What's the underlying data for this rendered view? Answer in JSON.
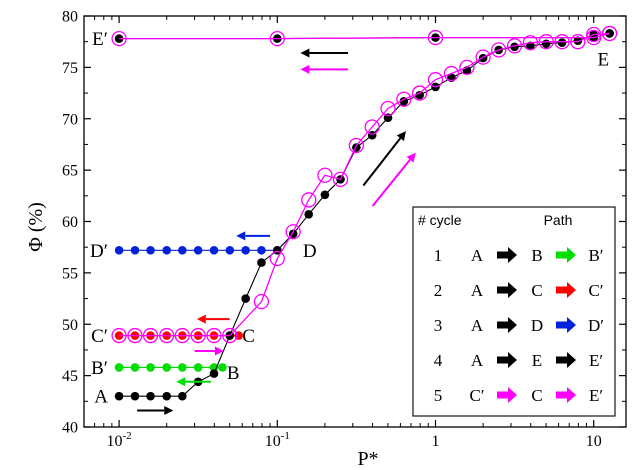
{
  "chart_data": {
    "type": "scatter",
    "xlabel": "P*",
    "ylabel": "Φ (%)",
    "xscale": "log",
    "xlim": [
      0.006,
      16
    ],
    "ylim": [
      40,
      80
    ],
    "x_ticks": [
      {
        "v": 0.01,
        "base": "10",
        "exp": "-2"
      },
      {
        "v": 0.1,
        "base": "10",
        "exp": "-1"
      },
      {
        "v": 1,
        "base": "1",
        "exp": ""
      },
      {
        "v": 10,
        "base": "10",
        "exp": ""
      }
    ],
    "y_ticks": [
      40,
      45,
      50,
      55,
      60,
      65,
      70,
      75,
      80
    ],
    "grid": false,
    "series": [
      {
        "name": "1",
        "color": "#00dd00",
        "marker": "filled-circle",
        "x": [
          0.01,
          0.0126,
          0.0158,
          0.02,
          0.0251,
          0.0316,
          0.0398,
          0.045
        ],
        "y": [
          45.8,
          45.8,
          45.8,
          45.8,
          45.8,
          45.8,
          45.8,
          45.8
        ]
      },
      {
        "name": "2",
        "color": "#ff0000",
        "marker": "filled-circle",
        "x": [
          0.01,
          0.0126,
          0.0158,
          0.02,
          0.0251,
          0.0316,
          0.0398,
          0.0501,
          0.057
        ],
        "y": [
          48.9,
          48.9,
          48.9,
          48.9,
          48.9,
          48.9,
          48.9,
          48.9,
          48.9
        ]
      },
      {
        "name": "3",
        "color": "#0022dd",
        "marker": "filled-circle",
        "x": [
          0.01,
          0.0126,
          0.0158,
          0.02,
          0.0251,
          0.0316,
          0.0398,
          0.0501,
          0.0631,
          0.0794,
          0.1
        ],
        "y": [
          57.2,
          57.2,
          57.2,
          57.2,
          57.2,
          57.2,
          57.2,
          57.2,
          57.2,
          57.2,
          57.2
        ]
      },
      {
        "name": "4",
        "color": "#000000",
        "marker": "filled-circle",
        "x": [
          0.01,
          0.0126,
          0.0158,
          0.02,
          0.0251,
          0.0316,
          0.0398,
          0.0501,
          0.0631,
          0.0794,
          0.1,
          0.126,
          0.158,
          0.2,
          0.251,
          0.316,
          0.398,
          0.501,
          0.631,
          0.794,
          1,
          1.26,
          1.58,
          2,
          2.51,
          3.16,
          3.98,
          5.01,
          6.31,
          7.94,
          10,
          12.6,
          12.6,
          10,
          1,
          0.1,
          0.01
        ],
        "y": [
          43.0,
          43.0,
          43.0,
          43.0,
          43.0,
          44.4,
          45.2,
          48.9,
          52.5,
          56.0,
          57.2,
          58.8,
          60.7,
          62.6,
          64.1,
          67.2,
          68.4,
          70.1,
          71.7,
          72.3,
          73.1,
          74.0,
          74.7,
          75.9,
          76.7,
          77.0,
          77.1,
          77.3,
          77.4,
          77.6,
          78.2,
          78.3,
          78.3,
          77.9,
          77.9,
          77.8,
          77.8
        ]
      },
      {
        "name": "5",
        "color": "#ff00ff",
        "marker": "open-circle",
        "x": [
          0.01,
          0.0126,
          0.0158,
          0.02,
          0.0251,
          0.0316,
          0.0398,
          0.0501,
          0.0794,
          0.1,
          0.126,
          0.158,
          0.2,
          0.251,
          0.316,
          0.398,
          0.501,
          0.631,
          0.794,
          1,
          1.26,
          1.58,
          2,
          2.51,
          3.16,
          3.98,
          5.01,
          6.31,
          7.94,
          10,
          12.6,
          12.6,
          10,
          1,
          0.1,
          0.01
        ],
        "y": [
          48.9,
          48.9,
          48.9,
          48.9,
          48.9,
          48.9,
          48.9,
          48.9,
          52.2,
          56.4,
          59.0,
          62.1,
          64.5,
          64.1,
          67.4,
          69.2,
          71.0,
          71.9,
          72.5,
          73.8,
          74.4,
          75.0,
          76.0,
          76.7,
          77.1,
          77.4,
          77.5,
          77.5,
          77.5,
          78.2,
          78.3,
          78.3,
          77.9,
          77.9,
          77.8,
          77.8
        ]
      }
    ],
    "point_labels": [
      {
        "text": "A",
        "x": 0.0085,
        "y": 43.0,
        "anchor": "end"
      },
      {
        "text": "B",
        "x": 0.048,
        "y": 45.3,
        "anchor": "start"
      },
      {
        "text": "B′",
        "x": 0.0085,
        "y": 45.8,
        "anchor": "end"
      },
      {
        "text": "C",
        "x": 0.06,
        "y": 48.9,
        "anchor": "start"
      },
      {
        "text": "C′",
        "x": 0.0085,
        "y": 48.9,
        "anchor": "end"
      },
      {
        "text": "D",
        "x": 0.145,
        "y": 57.2,
        "anchor": "start"
      },
      {
        "text": "D′",
        "x": 0.0085,
        "y": 57.2,
        "anchor": "end"
      },
      {
        "text": "E",
        "x": 11.5,
        "y": 75.8,
        "anchor": "middle"
      },
      {
        "text": "E′",
        "x": 0.0085,
        "y": 77.8,
        "anchor": "end"
      }
    ],
    "arrows": [
      {
        "color": "#000000",
        "from": [
          0.013,
          41.6
        ],
        "to": [
          0.022,
          41.6
        ]
      },
      {
        "color": "#ff00ff",
        "from": [
          0.03,
          47.4
        ],
        "to": [
          0.046,
          47.4
        ]
      },
      {
        "color": "#00dd00",
        "from": [
          0.038,
          44.4
        ],
        "to": [
          0.023,
          44.4
        ]
      },
      {
        "color": "#ff0000",
        "from": [
          0.05,
          50.5
        ],
        "to": [
          0.031,
          50.5
        ]
      },
      {
        "color": "#0022dd",
        "from": [
          0.09,
          58.6
        ],
        "to": [
          0.055,
          58.6
        ]
      },
      {
        "color": "#000000",
        "from": [
          0.35,
          63.5
        ],
        "to": [
          0.65,
          68.8
        ]
      },
      {
        "color": "#ff00ff",
        "from": [
          0.4,
          61.5
        ],
        "to": [
          0.75,
          66.7
        ]
      },
      {
        "color": "#000000",
        "from": [
          0.28,
          76.4
        ],
        "to": [
          0.14,
          76.4
        ]
      },
      {
        "color": "#ff00ff",
        "from": [
          0.28,
          74.8
        ],
        "to": [
          0.14,
          74.8
        ]
      }
    ],
    "legend": {
      "placement": "bottom-right",
      "header_cycle": "# cycle",
      "header_path": "Path",
      "rows": [
        {
          "cycle": "1",
          "p1": "A",
          "a1": "#000000",
          "p2": "B",
          "a2": "#00dd00",
          "p3": "B′"
        },
        {
          "cycle": "2",
          "p1": "A",
          "a1": "#000000",
          "p2": "C",
          "a2": "#ff0000",
          "p3": "C′"
        },
        {
          "cycle": "3",
          "p1": "A",
          "a1": "#000000",
          "p2": "D",
          "a2": "#0022dd",
          "p3": "D′"
        },
        {
          "cycle": "4",
          "p1": "A",
          "a1": "#000000",
          "p2": "E",
          "a2": "#000000",
          "p3": "E′"
        },
        {
          "cycle": "5",
          "p1": "C′",
          "a1": "#ff00ff",
          "p2": "C",
          "a2": "#ff00ff",
          "p3": "E′"
        }
      ]
    }
  }
}
